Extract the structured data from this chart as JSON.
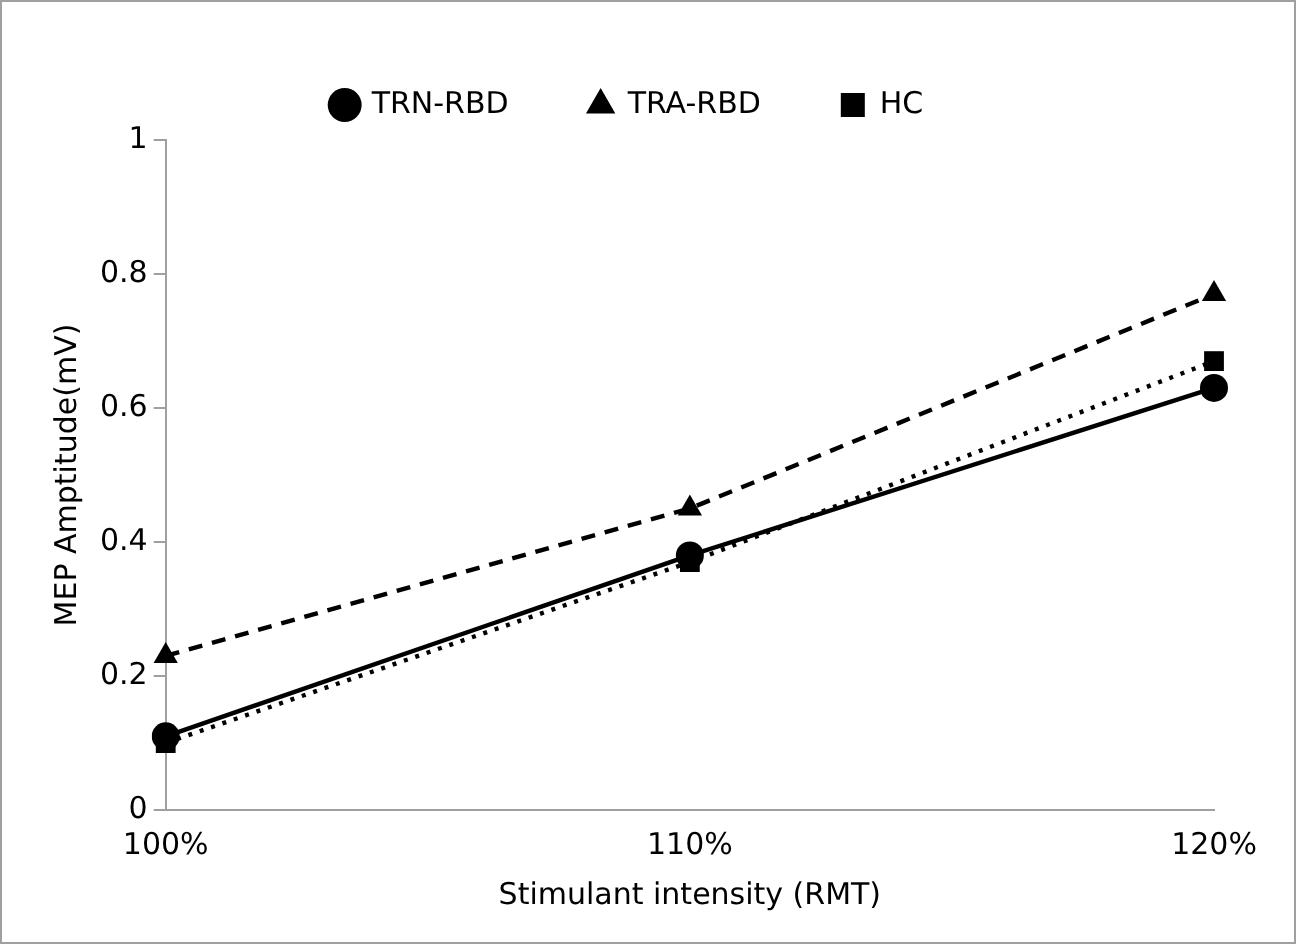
{
  "chart_data": {
    "type": "line",
    "xlabel": "Stimulant intensity (RMT)",
    "ylabel": "MEP Amptitude(mV)",
    "categories": [
      "100%",
      "110%",
      "120%"
    ],
    "series": [
      {
        "name": "TRN-RBD",
        "color": "#000000",
        "values": [
          0.11,
          0.38,
          0.63
        ],
        "marker": "circle",
        "line_style": "solid"
      },
      {
        "name": "TRA-RBD",
        "color": "#000000",
        "values": [
          0.23,
          0.45,
          0.77
        ],
        "marker": "triangle",
        "line_style": "dashed"
      },
      {
        "name": "HC",
        "color": "#000000",
        "values": [
          0.1,
          0.37,
          0.67
        ],
        "marker": "square",
        "line_style": "dotted"
      }
    ],
    "ylim": [
      0,
      1
    ],
    "yticks": [
      0,
      0.2,
      0.4,
      0.6,
      0.8,
      1
    ],
    "grid": false,
    "legend": "top"
  }
}
